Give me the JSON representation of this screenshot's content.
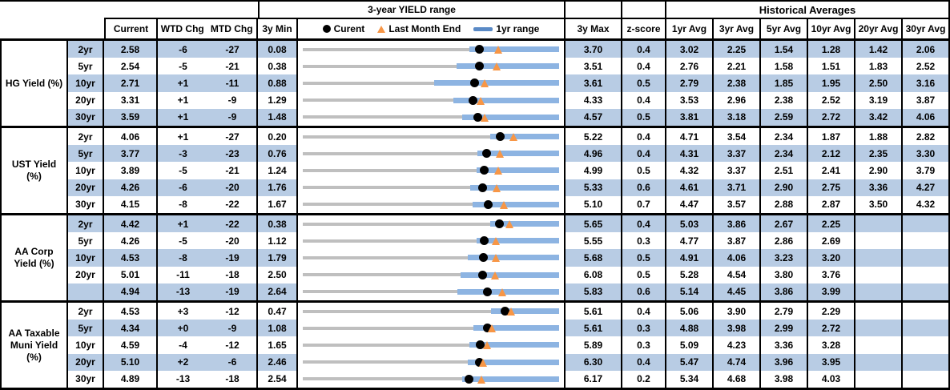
{
  "header": {
    "range_title": "3-year YIELD range",
    "hist_title": "Historical Averages"
  },
  "legend": {
    "current_label": "Curent",
    "last_month_label": "Last Month End",
    "range_label": "1yr range"
  },
  "columns": {
    "current": "Current",
    "wtd": "WTD Chg",
    "mtd": "MTD Chg",
    "min3y": "3y Min",
    "max3y": "3y Max",
    "zscore": "z-score",
    "avgs": [
      "1yr Avg",
      "3yr Avg",
      "5yr Avg",
      "10yr Avg",
      "20yr Avg",
      "30yr Avg"
    ]
  },
  "colors": {
    "row_shade": "#B8CCE4",
    "range_bar_blue": "#8DB4E2",
    "legend_bar_blue": "#5A8AC6",
    "marker_orange": "#F79646",
    "track_gray": "#BFBFBF",
    "border_black": "#000000"
  },
  "groups": [
    {
      "label": "HG Yield (%)",
      "rows": [
        {
          "tenor": "2yr",
          "current": "2.58",
          "wtd": "-6",
          "mtd": "-27",
          "min": "0.08",
          "max": "3.70",
          "z": "0.4",
          "avgs": [
            "3.02",
            "2.25",
            "1.54",
            "1.28",
            "1.42",
            "2.06"
          ],
          "shaded": true,
          "min_v": 0.08,
          "max_v": 3.7,
          "cur_v": 2.58,
          "lme_v": 2.85,
          "lo_v": 2.43
        },
        {
          "tenor": "5yr",
          "current": "2.54",
          "wtd": "-5",
          "mtd": "-21",
          "min": "0.38",
          "max": "3.51",
          "z": "0.4",
          "avgs": [
            "2.76",
            "2.21",
            "1.58",
            "1.51",
            "1.83",
            "2.52"
          ],
          "shaded": false,
          "min_v": 0.38,
          "max_v": 3.51,
          "cur_v": 2.54,
          "lme_v": 2.75,
          "lo_v": 2.26
        },
        {
          "tenor": "10yr",
          "current": "2.71",
          "wtd": "+1",
          "mtd": "-11",
          "min": "0.88",
          "max": "3.61",
          "z": "0.5",
          "avgs": [
            "2.79",
            "2.38",
            "1.85",
            "1.95",
            "2.50",
            "3.16"
          ],
          "shaded": true,
          "min_v": 0.88,
          "max_v": 3.61,
          "cur_v": 2.71,
          "lme_v": 2.82,
          "lo_v": 2.28
        },
        {
          "tenor": "20yr",
          "current": "3.31",
          "wtd": "+1",
          "mtd": "-9",
          "min": "1.29",
          "max": "4.33",
          "z": "0.4",
          "avgs": [
            "3.53",
            "2.96",
            "2.38",
            "2.52",
            "3.19",
            "3.87"
          ],
          "shaded": false,
          "min_v": 1.29,
          "max_v": 4.33,
          "cur_v": 3.31,
          "lme_v": 3.4,
          "lo_v": 3.08
        },
        {
          "tenor": "30yr",
          "current": "3.59",
          "wtd": "+1",
          "mtd": "-9",
          "min": "1.48",
          "max": "4.57",
          "z": "0.5",
          "avgs": [
            "3.81",
            "3.18",
            "2.59",
            "2.72",
            "3.42",
            "4.06"
          ],
          "shaded": true,
          "min_v": 1.48,
          "max_v": 4.57,
          "cur_v": 3.59,
          "lme_v": 3.68,
          "lo_v": 3.4
        }
      ]
    },
    {
      "label": "UST Yield (%)",
      "rows": [
        {
          "tenor": "2yr",
          "current": "4.06",
          "wtd": "+1",
          "mtd": "-27",
          "min": "0.20",
          "max": "5.22",
          "z": "0.4",
          "avgs": [
            "4.71",
            "3.54",
            "2.34",
            "1.87",
            "1.88",
            "2.82"
          ],
          "shaded": false,
          "min_v": 0.2,
          "max_v": 5.22,
          "cur_v": 4.06,
          "lme_v": 4.33,
          "lo_v": 3.87
        },
        {
          "tenor": "5yr",
          "current": "3.77",
          "wtd": "-3",
          "mtd": "-23",
          "min": "0.76",
          "max": "4.96",
          "z": "0.4",
          "avgs": [
            "4.31",
            "3.37",
            "2.34",
            "2.12",
            "2.35",
            "3.30"
          ],
          "shaded": true,
          "min_v": 0.76,
          "max_v": 4.96,
          "cur_v": 3.77,
          "lme_v": 4.0,
          "lo_v": 3.62
        },
        {
          "tenor": "10yr",
          "current": "3.89",
          "wtd": "-5",
          "mtd": "-21",
          "min": "1.24",
          "max": "4.99",
          "z": "0.5",
          "avgs": [
            "4.32",
            "3.37",
            "2.51",
            "2.41",
            "2.90",
            "3.79"
          ],
          "shaded": false,
          "min_v": 1.24,
          "max_v": 4.99,
          "cur_v": 3.89,
          "lme_v": 4.1,
          "lo_v": 3.78
        },
        {
          "tenor": "20yr",
          "current": "4.26",
          "wtd": "-6",
          "mtd": "-20",
          "min": "1.76",
          "max": "5.33",
          "z": "0.6",
          "avgs": [
            "4.61",
            "3.71",
            "2.90",
            "2.75",
            "3.36",
            "4.27"
          ],
          "shaded": true,
          "min_v": 1.76,
          "max_v": 5.33,
          "cur_v": 4.26,
          "lme_v": 4.46,
          "lo_v": 4.09
        },
        {
          "tenor": "30yr",
          "current": "4.15",
          "wtd": "-8",
          "mtd": "-22",
          "min": "1.67",
          "max": "5.10",
          "z": "0.7",
          "avgs": [
            "4.47",
            "3.57",
            "2.88",
            "2.87",
            "3.50",
            "4.32"
          ],
          "shaded": false,
          "min_v": 1.67,
          "max_v": 5.1,
          "cur_v": 4.15,
          "lme_v": 4.37,
          "lo_v": 3.94
        }
      ]
    },
    {
      "label": "AA Corp Yield (%)",
      "rows": [
        {
          "tenor": "2yr",
          "current": "4.42",
          "wtd": "+1",
          "mtd": "-22",
          "min": "0.38",
          "max": "5.65",
          "z": "0.4",
          "avgs": [
            "5.03",
            "3.86",
            "2.67",
            "2.25",
            "",
            ""
          ],
          "shaded": true,
          "min_v": 0.38,
          "max_v": 5.65,
          "cur_v": 4.42,
          "lme_v": 4.64,
          "lo_v": 4.24
        },
        {
          "tenor": "5yr",
          "current": "4.26",
          "wtd": "-5",
          "mtd": "-20",
          "min": "1.12",
          "max": "5.55",
          "z": "0.3",
          "avgs": [
            "4.77",
            "3.87",
            "2.86",
            "2.69",
            "",
            ""
          ],
          "shaded": false,
          "min_v": 1.12,
          "max_v": 5.55,
          "cur_v": 4.26,
          "lme_v": 4.46,
          "lo_v": 4.12
        },
        {
          "tenor": "10yr",
          "current": "4.53",
          "wtd": "-8",
          "mtd": "-19",
          "min": "1.79",
          "max": "5.68",
          "z": "0.5",
          "avgs": [
            "4.91",
            "4.06",
            "3.23",
            "3.20",
            "",
            ""
          ],
          "shaded": true,
          "min_v": 1.79,
          "max_v": 5.68,
          "cur_v": 4.53,
          "lme_v": 4.72,
          "lo_v": 4.3
        },
        {
          "tenor": "20yr",
          "current": "5.01",
          "wtd": "-11",
          "mtd": "-18",
          "min": "2.50",
          "max": "6.08",
          "z": "0.5",
          "avgs": [
            "5.28",
            "4.54",
            "3.80",
            "3.76",
            "",
            ""
          ],
          "shaded": false,
          "min_v": 2.5,
          "max_v": 6.08,
          "cur_v": 5.01,
          "lme_v": 5.19,
          "lo_v": 4.7
        },
        {
          "tenor": "",
          "current": "4.94",
          "wtd": "-13",
          "mtd": "-19",
          "min": "2.64",
          "max": "5.83",
          "z": "0.6",
          "avgs": [
            "5.14",
            "4.45",
            "3.86",
            "3.99",
            "",
            ""
          ],
          "shaded": true,
          "min_v": 2.64,
          "max_v": 5.83,
          "cur_v": 4.94,
          "lme_v": 5.13,
          "lo_v": 4.56
        }
      ]
    },
    {
      "label": "AA Taxable Muni Yield (%)",
      "rows": [
        {
          "tenor": "2yr",
          "current": "4.53",
          "wtd": "+3",
          "mtd": "-12",
          "min": "0.47",
          "max": "5.61",
          "z": "0.4",
          "avgs": [
            "5.06",
            "3.90",
            "2.79",
            "2.29",
            "",
            ""
          ],
          "shaded": false,
          "min_v": 0.47,
          "max_v": 5.61,
          "cur_v": 4.53,
          "lme_v": 4.65,
          "lo_v": 4.24
        },
        {
          "tenor": "5yr",
          "current": "4.34",
          "wtd": "+0",
          "mtd": "-9",
          "min": "1.08",
          "max": "5.61",
          "z": "0.3",
          "avgs": [
            "4.88",
            "3.98",
            "2.99",
            "2.72",
            "",
            ""
          ],
          "shaded": true,
          "min_v": 1.08,
          "max_v": 5.61,
          "cur_v": 4.34,
          "lme_v": 4.43,
          "lo_v": 4.1
        },
        {
          "tenor": "10yr",
          "current": "4.59",
          "wtd": "-4",
          "mtd": "-12",
          "min": "1.65",
          "max": "5.89",
          "z": "0.3",
          "avgs": [
            "5.09",
            "4.23",
            "3.36",
            "3.28",
            "",
            ""
          ],
          "shaded": false,
          "min_v": 1.65,
          "max_v": 5.89,
          "cur_v": 4.59,
          "lme_v": 4.71,
          "lo_v": 4.41
        },
        {
          "tenor": "20yr",
          "current": "5.10",
          "wtd": "+2",
          "mtd": "-6",
          "min": "2.46",
          "max": "6.30",
          "z": "0.4",
          "avgs": [
            "5.47",
            "4.74",
            "3.96",
            "3.95",
            "",
            ""
          ],
          "shaded": true,
          "min_v": 2.46,
          "max_v": 6.3,
          "cur_v": 5.1,
          "lme_v": 5.16,
          "lo_v": 4.93
        },
        {
          "tenor": "30yr",
          "current": "4.89",
          "wtd": "-13",
          "mtd": "-18",
          "min": "2.54",
          "max": "6.17",
          "z": "0.2",
          "avgs": [
            "5.34",
            "4.68",
            "3.98",
            "4.03",
            "",
            ""
          ],
          "shaded": false,
          "min_v": 2.54,
          "max_v": 6.17,
          "cur_v": 4.89,
          "lme_v": 5.07,
          "lo_v": 4.8
        }
      ]
    }
  ],
  "chart_data": {
    "type": "table",
    "title": "3-year YIELD range",
    "legend_entries": [
      "Curent (black dot)",
      "Last Month End (orange triangle)",
      "1yr range (blue bar)"
    ],
    "description": "Dot-and-range plot per row: gray track spans 3y Min to 3y Max; blue bar is the 1yr range (upper end equals 3y Max in every row); black dot = current yield; orange triangle = last month end yield.",
    "rows": [
      {
        "group": "HG Yield (%)",
        "tenor": "2yr",
        "min_3y": 0.08,
        "max_3y": 3.7,
        "current": 2.58,
        "last_month_end": 2.85,
        "range_1yr": [
          2.43,
          3.7
        ],
        "z_score": 0.4
      },
      {
        "group": "HG Yield (%)",
        "tenor": "5yr",
        "min_3y": 0.38,
        "max_3y": 3.51,
        "current": 2.54,
        "last_month_end": 2.75,
        "range_1yr": [
          2.26,
          3.51
        ],
        "z_score": 0.4
      },
      {
        "group": "HG Yield (%)",
        "tenor": "10yr",
        "min_3y": 0.88,
        "max_3y": 3.61,
        "current": 2.71,
        "last_month_end": 2.82,
        "range_1yr": [
          2.28,
          3.61
        ],
        "z_score": 0.5
      },
      {
        "group": "HG Yield (%)",
        "tenor": "20yr",
        "min_3y": 1.29,
        "max_3y": 4.33,
        "current": 3.31,
        "last_month_end": 3.4,
        "range_1yr": [
          3.08,
          4.33
        ],
        "z_score": 0.4
      },
      {
        "group": "HG Yield (%)",
        "tenor": "30yr",
        "min_3y": 1.48,
        "max_3y": 4.57,
        "current": 3.59,
        "last_month_end": 3.68,
        "range_1yr": [
          3.4,
          4.57
        ],
        "z_score": 0.5
      },
      {
        "group": "UST Yield (%)",
        "tenor": "2yr",
        "min_3y": 0.2,
        "max_3y": 5.22,
        "current": 4.06,
        "last_month_end": 4.33,
        "range_1yr": [
          3.87,
          5.22
        ],
        "z_score": 0.4
      },
      {
        "group": "UST Yield (%)",
        "tenor": "5yr",
        "min_3y": 0.76,
        "max_3y": 4.96,
        "current": 3.77,
        "last_month_end": 4.0,
        "range_1yr": [
          3.62,
          4.96
        ],
        "z_score": 0.4
      },
      {
        "group": "UST Yield (%)",
        "tenor": "10yr",
        "min_3y": 1.24,
        "max_3y": 4.99,
        "current": 3.89,
        "last_month_end": 4.1,
        "range_1yr": [
          3.78,
          4.99
        ],
        "z_score": 0.5
      },
      {
        "group": "UST Yield (%)",
        "tenor": "20yr",
        "min_3y": 1.76,
        "max_3y": 5.33,
        "current": 4.26,
        "last_month_end": 4.46,
        "range_1yr": [
          4.09,
          5.33
        ],
        "z_score": 0.6
      },
      {
        "group": "UST Yield (%)",
        "tenor": "30yr",
        "min_3y": 1.67,
        "max_3y": 5.1,
        "current": 4.15,
        "last_month_end": 4.37,
        "range_1yr": [
          3.94,
          5.1
        ],
        "z_score": 0.7
      },
      {
        "group": "AA Corp Yield (%)",
        "tenor": "2yr",
        "min_3y": 0.38,
        "max_3y": 5.65,
        "current": 4.42,
        "last_month_end": 4.64,
        "range_1yr": [
          4.24,
          5.65
        ],
        "z_score": 0.4
      },
      {
        "group": "AA Corp Yield (%)",
        "tenor": "5yr",
        "min_3y": 1.12,
        "max_3y": 5.55,
        "current": 4.26,
        "last_month_end": 4.46,
        "range_1yr": [
          4.12,
          5.55
        ],
        "z_score": 0.3
      },
      {
        "group": "AA Corp Yield (%)",
        "tenor": "10yr",
        "min_3y": 1.79,
        "max_3y": 5.68,
        "current": 4.53,
        "last_month_end": 4.72,
        "range_1yr": [
          4.3,
          5.68
        ],
        "z_score": 0.5
      },
      {
        "group": "AA Corp Yield (%)",
        "tenor": "20yr",
        "min_3y": 2.5,
        "max_3y": 6.08,
        "current": 5.01,
        "last_month_end": 5.19,
        "range_1yr": [
          4.7,
          6.08
        ],
        "z_score": 0.5
      },
      {
        "group": "AA Corp Yield (%)",
        "tenor": "",
        "min_3y": 2.64,
        "max_3y": 5.83,
        "current": 4.94,
        "last_month_end": 5.13,
        "range_1yr": [
          4.56,
          5.83
        ],
        "z_score": 0.6
      },
      {
        "group": "AA Taxable Muni Yield (%)",
        "tenor": "2yr",
        "min_3y": 0.47,
        "max_3y": 5.61,
        "current": 4.53,
        "last_month_end": 4.65,
        "range_1yr": [
          4.24,
          5.61
        ],
        "z_score": 0.4
      },
      {
        "group": "AA Taxable Muni Yield (%)",
        "tenor": "5yr",
        "min_3y": 1.08,
        "max_3y": 5.61,
        "current": 4.34,
        "last_month_end": 4.43,
        "range_1yr": [
          4.1,
          5.61
        ],
        "z_score": 0.3
      },
      {
        "group": "AA Taxable Muni Yield (%)",
        "tenor": "10yr",
        "min_3y": 1.65,
        "max_3y": 5.89,
        "current": 4.59,
        "last_month_end": 4.71,
        "range_1yr": [
          4.41,
          5.89
        ],
        "z_score": 0.3
      },
      {
        "group": "AA Taxable Muni Yield (%)",
        "tenor": "20yr",
        "min_3y": 2.46,
        "max_3y": 6.3,
        "current": 5.1,
        "last_month_end": 5.16,
        "range_1yr": [
          4.93,
          6.3
        ],
        "z_score": 0.4
      },
      {
        "group": "AA Taxable Muni Yield (%)",
        "tenor": "30yr",
        "min_3y": 2.54,
        "max_3y": 6.17,
        "current": 4.89,
        "last_month_end": 5.07,
        "range_1yr": [
          4.8,
          6.17
        ],
        "z_score": 0.2
      }
    ]
  }
}
